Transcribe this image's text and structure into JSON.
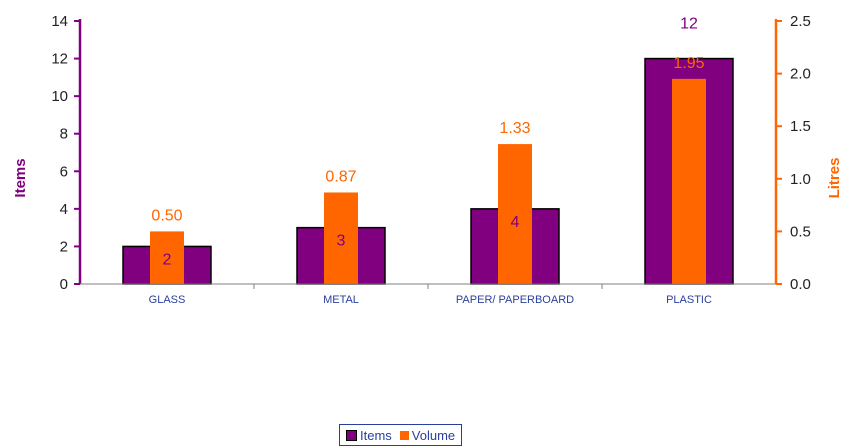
{
  "chart_data": {
    "type": "bar",
    "categories": [
      "GLASS",
      "METAL",
      "PAPER/ PAPERBOARD",
      "PLASTIC"
    ],
    "series": [
      {
        "name": "Items",
        "axis": "left",
        "values": [
          2,
          3,
          4,
          12
        ],
        "color": "#800080",
        "data_labels": [
          "2",
          "3",
          "4",
          "12"
        ]
      },
      {
        "name": "Volume",
        "axis": "right",
        "values": [
          0.5,
          0.87,
          1.33,
          1.95
        ],
        "color": "#ff6600",
        "data_labels": [
          "0.50",
          "0.87",
          "1.33",
          "1.95"
        ]
      }
    ],
    "ylabel": "Items",
    "ylabel_right": "Litres",
    "ylim": [
      0,
      14
    ],
    "ylim_right": [
      0,
      2.5
    ],
    "yticks": [
      0,
      2,
      4,
      6,
      8,
      10,
      12,
      14
    ],
    "yticks_right": [
      "0.0",
      "0.5",
      "1.0",
      "1.5",
      "2.0",
      "2.5"
    ],
    "left_axis_color": "#800080",
    "right_axis_color": "#ff6600",
    "grid": false,
    "legend_position": "bottom"
  }
}
